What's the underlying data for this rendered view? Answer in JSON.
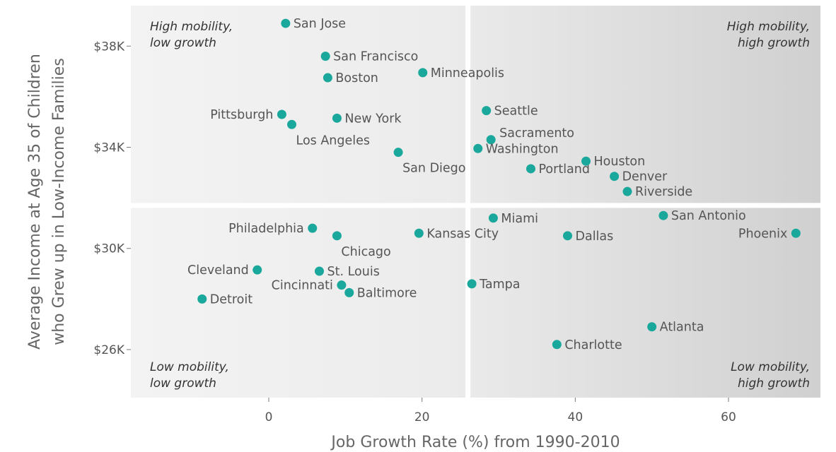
{
  "chart_data": {
    "type": "scatter",
    "xlabel": "Job Growth Rate (%) from 1990-2010",
    "ylabel_lines": [
      "Average Income at Age 35 of Children",
      "who Grew up in Low-Income Families"
    ],
    "xlim": [
      -18,
      72
    ],
    "ylim": [
      24100,
      39600
    ],
    "x_ticks": [
      {
        "value": 0,
        "label": "0"
      },
      {
        "value": 20,
        "label": "20"
      },
      {
        "value": 40,
        "label": "40"
      },
      {
        "value": 60,
        "label": "60"
      }
    ],
    "y_ticks": [
      {
        "value": 26000,
        "label": "$26K"
      },
      {
        "value": 30000,
        "label": "$30K"
      },
      {
        "value": 34000,
        "label": "$34K"
      },
      {
        "value": 38000,
        "label": "$38K"
      }
    ],
    "divider_x": 26,
    "divider_y": 31700,
    "point_color": "#1aa89c",
    "quadrants": [
      {
        "id": "tl",
        "lines": [
          "High mobility,",
          "low growth"
        ]
      },
      {
        "id": "tr",
        "lines": [
          "High mobility,",
          "high growth"
        ]
      },
      {
        "id": "bl",
        "lines": [
          "Low mobility,",
          "low growth"
        ]
      },
      {
        "id": "br",
        "lines": [
          "Low mobility,",
          "high growth"
        ]
      }
    ],
    "points": [
      {
        "name": "San Jose",
        "x": 2.2,
        "y": 38900,
        "label_pos": "right"
      },
      {
        "name": "San Francisco",
        "x": 7.4,
        "y": 37600,
        "label_pos": "right"
      },
      {
        "name": "Boston",
        "x": 7.7,
        "y": 36750,
        "label_pos": "right"
      },
      {
        "name": "Minneapolis",
        "x": 20.1,
        "y": 36950,
        "label_pos": "right"
      },
      {
        "name": "Pittsburgh",
        "x": 1.7,
        "y": 35300,
        "label_pos": "left"
      },
      {
        "name": "Los Angeles",
        "x": 3.0,
        "y": 34900,
        "label_pos": "below-right"
      },
      {
        "name": "New York",
        "x": 8.9,
        "y": 35150,
        "label_pos": "right"
      },
      {
        "name": "San Diego",
        "x": 16.9,
        "y": 33800,
        "label_pos": "below-right"
      },
      {
        "name": "Seattle",
        "x": 28.4,
        "y": 35450,
        "label_pos": "right"
      },
      {
        "name": "Sacramento",
        "x": 29.0,
        "y": 34300,
        "label_pos": "above-right"
      },
      {
        "name": "Washington",
        "x": 27.3,
        "y": 33950,
        "label_pos": "right"
      },
      {
        "name": "Portland",
        "x": 34.2,
        "y": 33150,
        "label_pos": "right"
      },
      {
        "name": "Houston",
        "x": 41.4,
        "y": 33450,
        "label_pos": "right"
      },
      {
        "name": "Denver",
        "x": 45.1,
        "y": 32850,
        "label_pos": "right"
      },
      {
        "name": "Riverside",
        "x": 46.8,
        "y": 32250,
        "label_pos": "right"
      },
      {
        "name": "Miami",
        "x": 29.3,
        "y": 31200,
        "label_pos": "right"
      },
      {
        "name": "San Antonio",
        "x": 51.5,
        "y": 31300,
        "label_pos": "right"
      },
      {
        "name": "Philadelphia",
        "x": 5.7,
        "y": 30800,
        "label_pos": "left"
      },
      {
        "name": "Chicago",
        "x": 8.9,
        "y": 30500,
        "label_pos": "below-right"
      },
      {
        "name": "Kansas City",
        "x": 19.6,
        "y": 30600,
        "label_pos": "right"
      },
      {
        "name": "Dallas",
        "x": 39.0,
        "y": 30500,
        "label_pos": "right"
      },
      {
        "name": "Phoenix",
        "x": 68.8,
        "y": 30600,
        "label_pos": "left"
      },
      {
        "name": "Cleveland",
        "x": -1.5,
        "y": 29150,
        "label_pos": "left"
      },
      {
        "name": "St. Louis",
        "x": 6.6,
        "y": 29100,
        "label_pos": "right"
      },
      {
        "name": "Cincinnati",
        "x": 9.5,
        "y": 28550,
        "label_pos": "left"
      },
      {
        "name": "Baltimore",
        "x": 10.5,
        "y": 28250,
        "label_pos": "right"
      },
      {
        "name": "Detroit",
        "x": -8.7,
        "y": 28000,
        "label_pos": "right"
      },
      {
        "name": "Tampa",
        "x": 26.5,
        "y": 28600,
        "label_pos": "right"
      },
      {
        "name": "Atlanta",
        "x": 50.0,
        "y": 26900,
        "label_pos": "right"
      },
      {
        "name": "Charlotte",
        "x": 37.6,
        "y": 26200,
        "label_pos": "right"
      }
    ]
  }
}
